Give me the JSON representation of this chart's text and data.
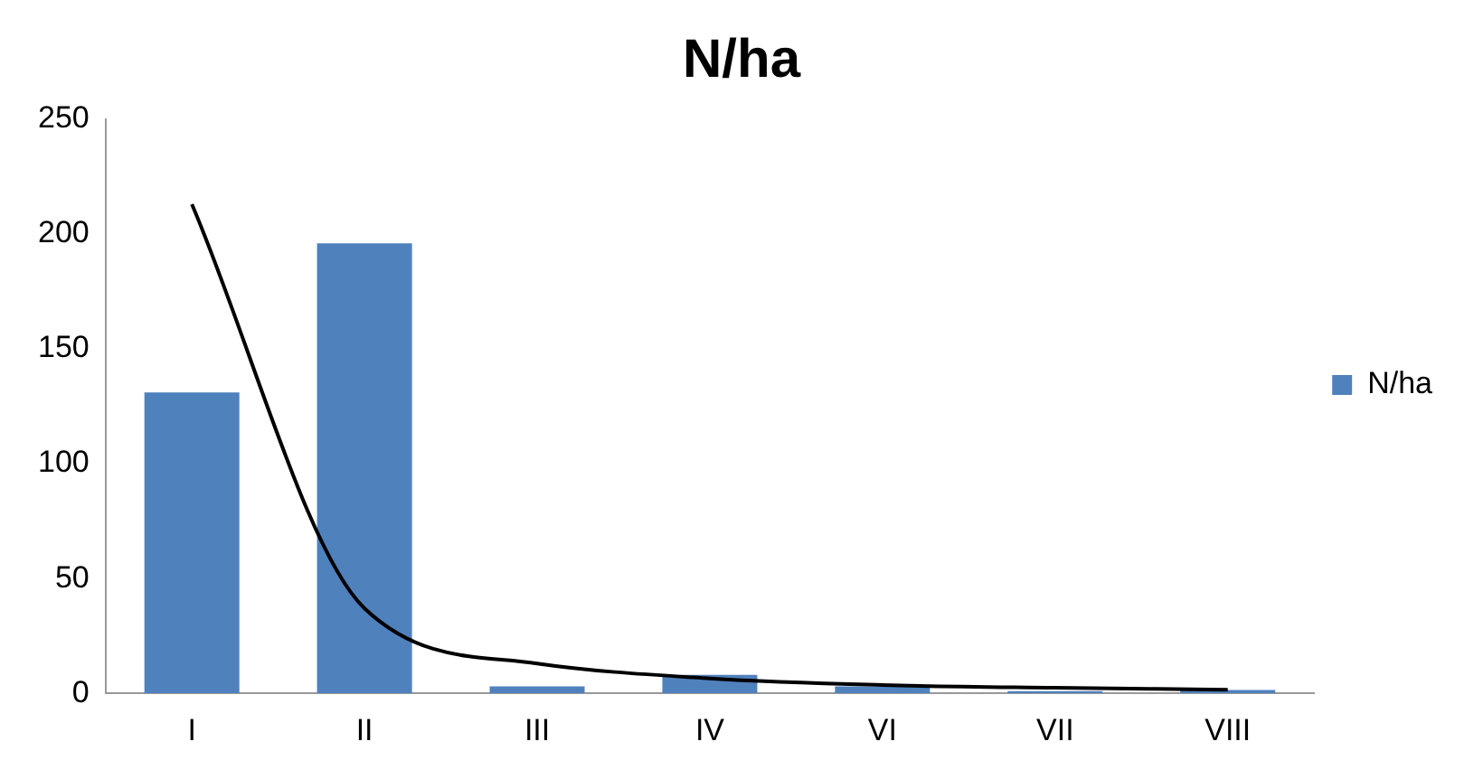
{
  "chart_data": {
    "type": "bar",
    "title": "N/ha",
    "categories": [
      "I",
      "II",
      "III",
      "IV",
      "VI",
      "VII",
      "VIII"
    ],
    "series": [
      {
        "name": "N/ha",
        "color": "#4f81bd",
        "values": [
          131,
          196,
          3,
          8,
          3,
          1,
          1.5
        ]
      },
      {
        "type": "line",
        "color": "#000000",
        "values": [
          213,
          37,
          13,
          6.5,
          3.6,
          2.4,
          1.6
        ]
      }
    ],
    "ylim": [
      0,
      250
    ],
    "yticks": [
      0,
      50,
      100,
      150,
      200,
      250
    ],
    "grid": false,
    "legend": "right",
    "marker": "none",
    "line_style": "solid"
  }
}
